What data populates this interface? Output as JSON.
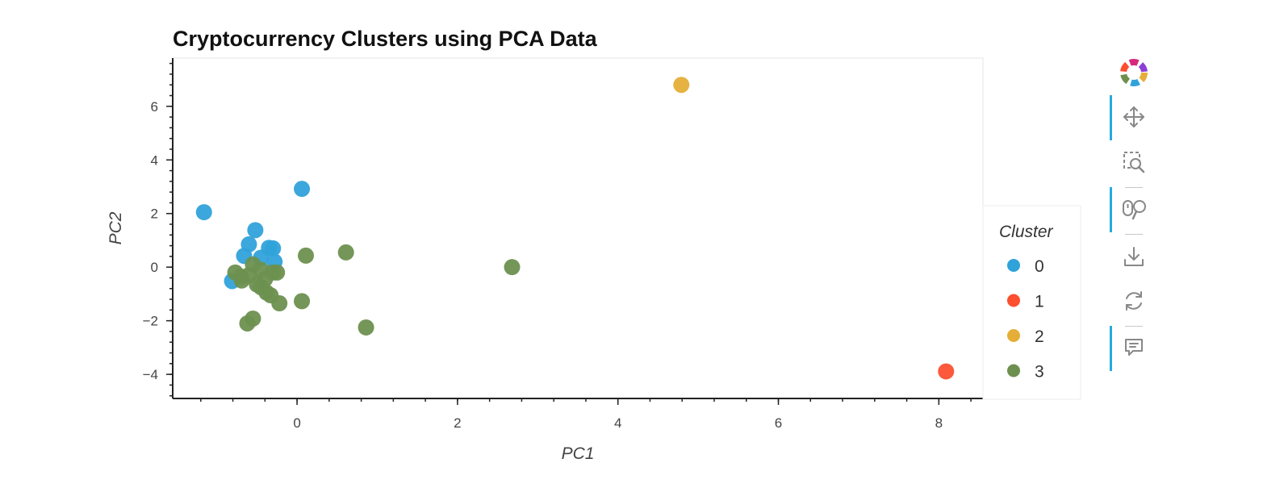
{
  "chart_data": {
    "type": "scatter",
    "title": "Cryptocurrency Clusters using PCA Data",
    "xlabel": "PC1",
    "ylabel": "PC2",
    "xlim": [
      -1.55,
      8.55
    ],
    "ylim": [
      -4.9,
      7.8
    ],
    "xticks": [
      0,
      2,
      4,
      6,
      8
    ],
    "xtick_labels": [
      "0",
      "2",
      "4",
      "6",
      "8"
    ],
    "yticks": [
      -4,
      -2,
      0,
      2,
      4,
      6
    ],
    "ytick_labels": [
      "−4",
      "−2",
      "0",
      "2",
      "4",
      "6"
    ],
    "grid": false,
    "legend": {
      "title": "Cluster",
      "placement": "right"
    },
    "series": [
      {
        "name": "0",
        "color": "#30a2da",
        "x": [
          -1.16,
          0.06,
          -0.52,
          -0.6,
          -0.35,
          -0.3,
          -0.66,
          -0.45,
          -0.28,
          -0.81
        ],
        "y": [
          2.05,
          2.92,
          1.38,
          0.85,
          0.72,
          0.7,
          0.42,
          0.35,
          0.2,
          -0.52
        ]
      },
      {
        "name": "1",
        "color": "#fc4f30",
        "x": [
          8.09
        ],
        "y": [
          -3.89
        ]
      },
      {
        "name": "2",
        "color": "#e5ae38",
        "x": [
          4.79
        ],
        "y": [
          6.8
        ]
      },
      {
        "name": "3",
        "color": "#6d904f",
        "x": [
          2.68,
          0.61,
          0.11,
          -0.77,
          -0.69,
          -0.6,
          -0.55,
          -0.45,
          -0.4,
          -0.3,
          -0.25,
          -0.7,
          -0.5,
          -0.45,
          -0.38,
          -0.33,
          -0.22,
          0.06,
          -0.55,
          -0.62,
          0.86
        ],
        "y": [
          0.0,
          0.55,
          0.43,
          -0.2,
          -0.5,
          -0.3,
          0.1,
          -0.1,
          -0.45,
          -0.2,
          -0.2,
          -0.35,
          -0.65,
          -0.75,
          -0.95,
          -1.05,
          -1.35,
          -1.27,
          -1.92,
          -2.1,
          -2.25
        ]
      }
    ]
  },
  "toolbar": {
    "logo": "bokeh-logo-icon",
    "tools": [
      {
        "name": "pan-tool",
        "icon": "move-icon",
        "active": true
      },
      {
        "name": "box-zoom-tool",
        "icon": "box-zoom-icon",
        "active": false
      },
      {
        "name": "wheel-zoom-tool",
        "icon": "wheel-zoom-icon",
        "active": true
      },
      {
        "name": "save-tool",
        "icon": "download-icon",
        "active": false
      },
      {
        "name": "reset-tool",
        "icon": "reset-icon",
        "active": false
      },
      {
        "name": "hover-tool",
        "icon": "hover-icon",
        "active": true
      }
    ]
  }
}
